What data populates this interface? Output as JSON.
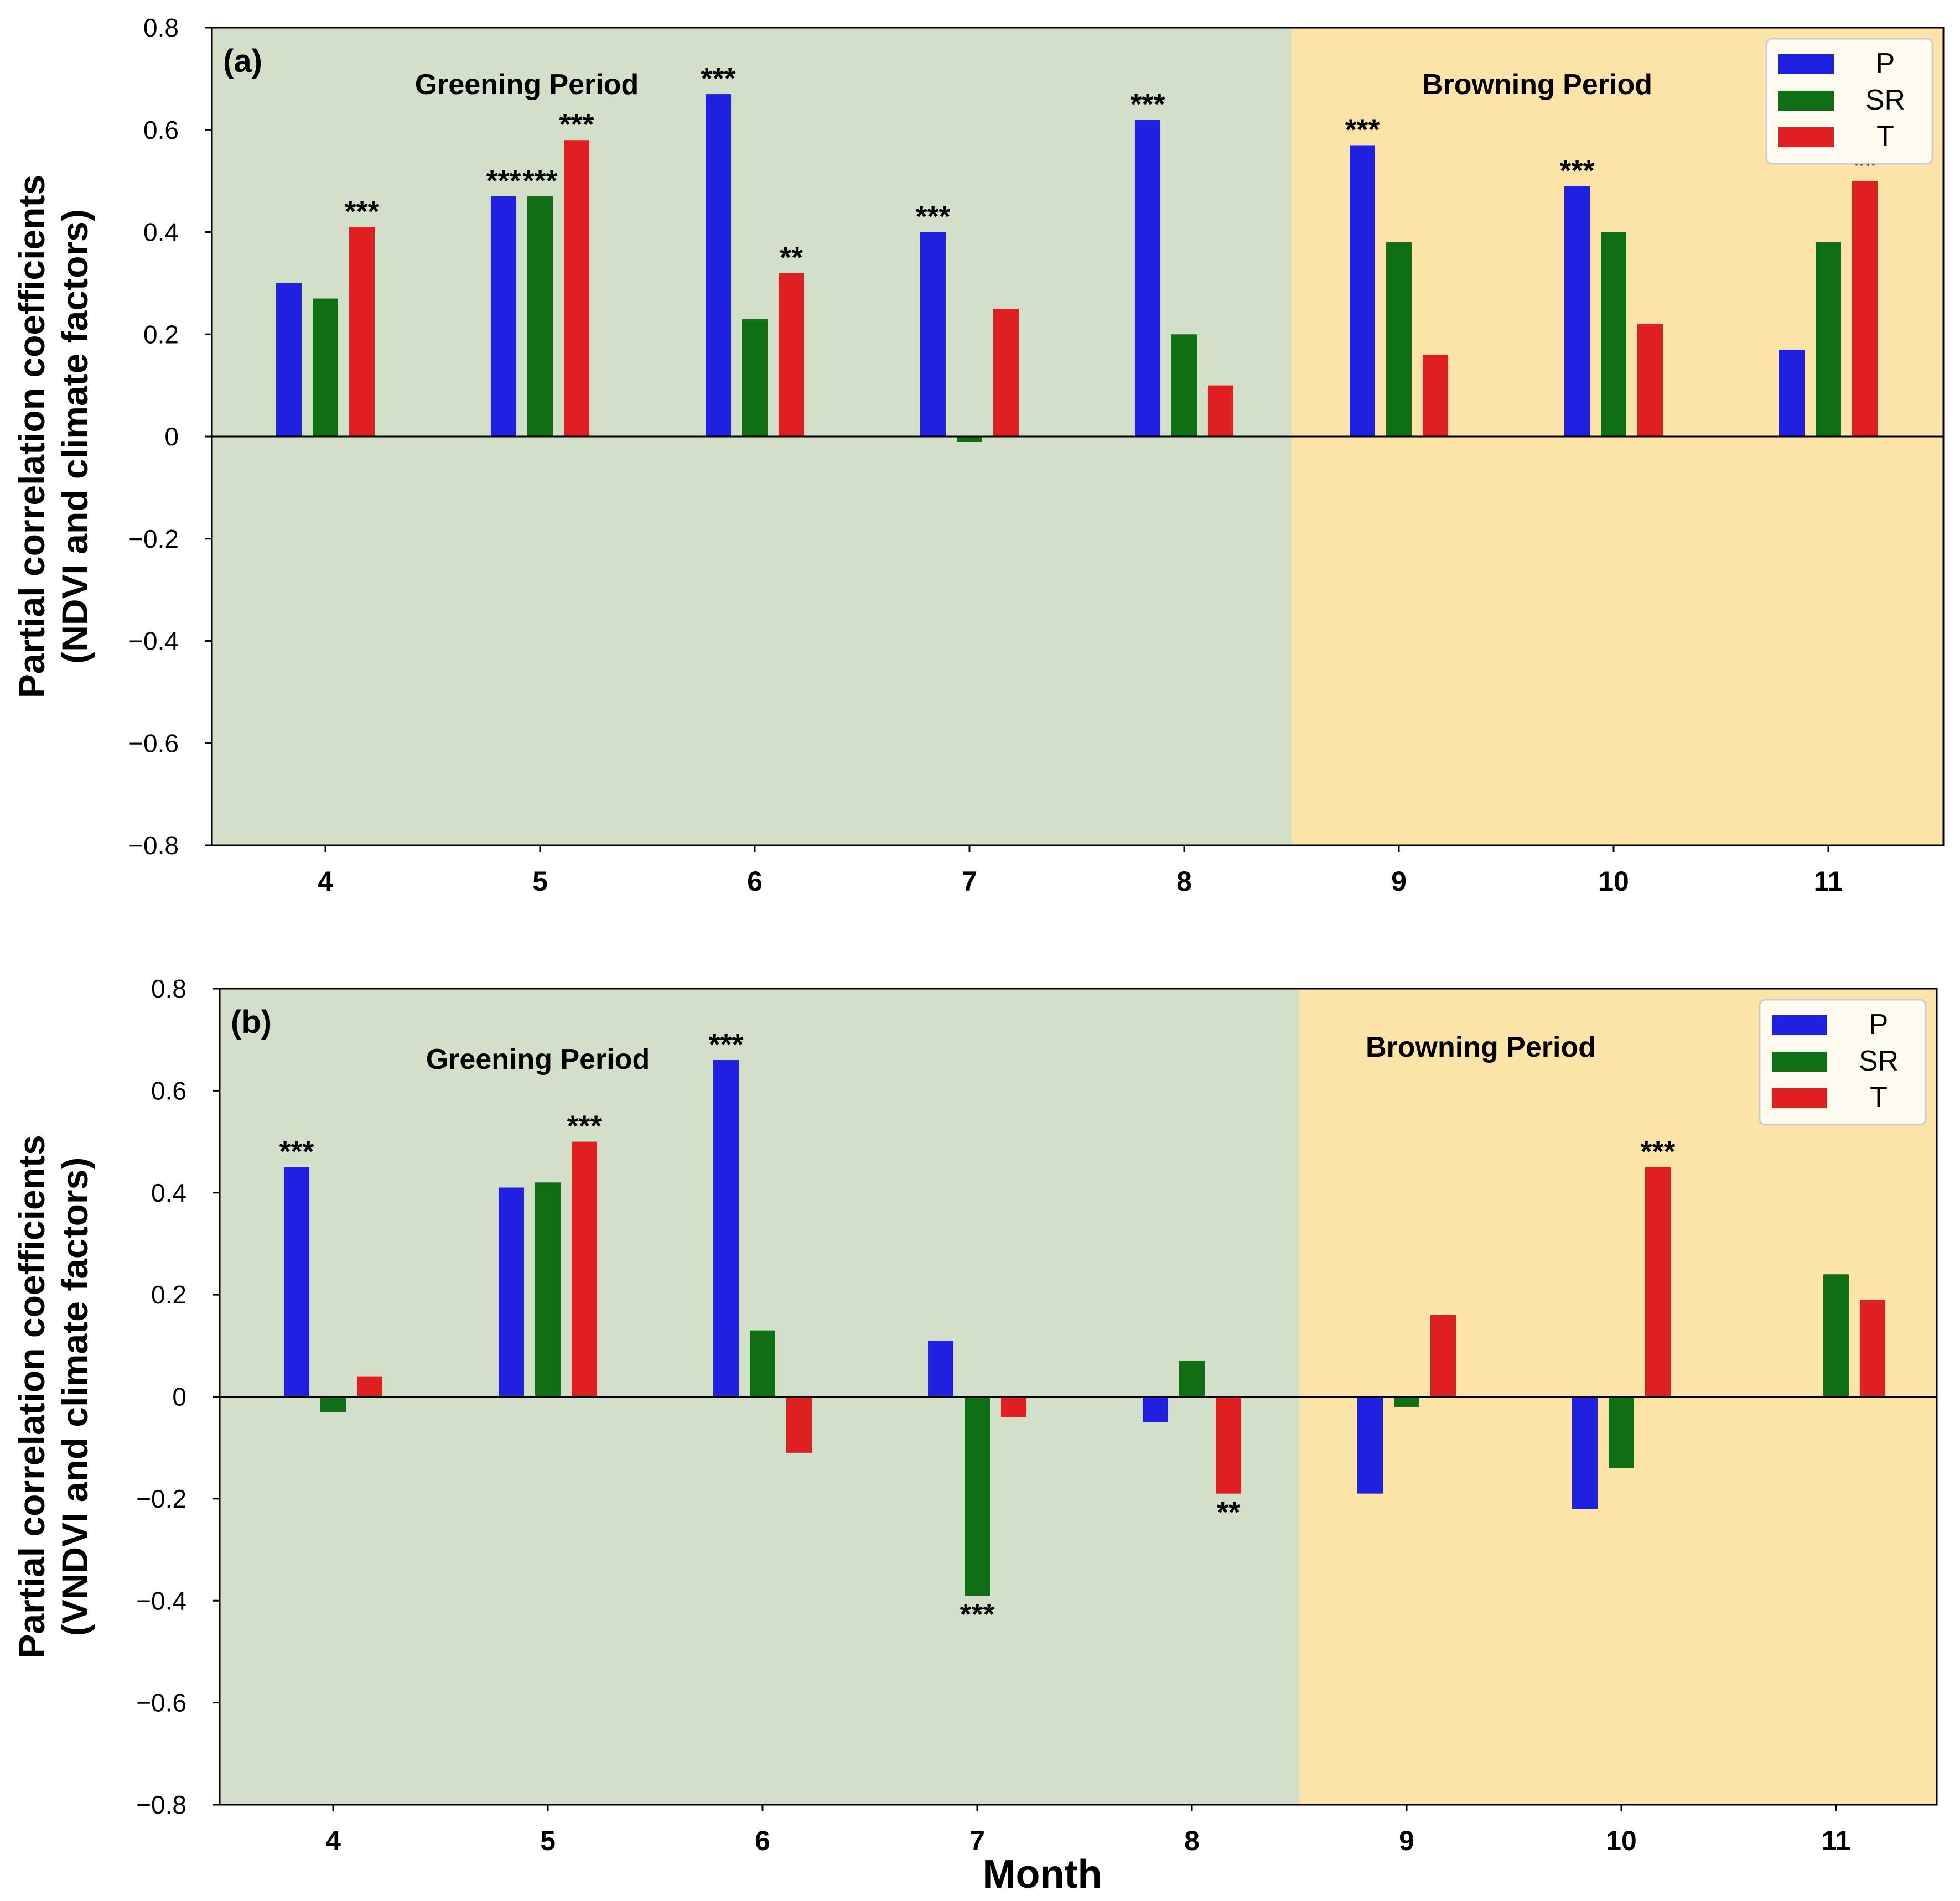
{
  "chart_data": [
    {
      "type": "bar",
      "panel_label": "(a)",
      "ylabel_line1": "Partial correlation coefficients",
      "ylabel_line2": "(NDVI and climate factors)",
      "xlabel": "",
      "categories": [
        "4",
        "5",
        "6",
        "7",
        "8",
        "9",
        "10",
        "11"
      ],
      "ylim": [
        -0.8,
        0.8
      ],
      "yticks": [
        0.8,
        0.6,
        0.4,
        0.2,
        0,
        -0.2,
        -0.4,
        -0.6,
        -0.8
      ],
      "ytick_labels": [
        "0.8",
        "0.6",
        "0.4",
        "0.2",
        "0",
        "−0.2",
        "−0.4",
        "−0.6",
        "−0.8"
      ],
      "regions": [
        {
          "label": "Greening Period",
          "from_category": "4",
          "to_category": "8",
          "color": "#d3e0c9"
        },
        {
          "label": "Browning Period",
          "from_category": "9",
          "to_category": "11",
          "color": "#fce3a7"
        }
      ],
      "series": [
        {
          "name": "P",
          "color": "#1f20e0",
          "values": [
            0.3,
            0.47,
            0.67,
            0.4,
            0.62,
            0.57,
            0.49,
            0.17
          ],
          "significance": [
            "",
            "***",
            "***",
            "***",
            "***",
            "***",
            "***",
            ""
          ]
        },
        {
          "name": "SR",
          "color": "#0f6f14",
          "values": [
            0.27,
            0.47,
            0.23,
            -0.01,
            0.2,
            0.38,
            0.4,
            0.38
          ],
          "significance": [
            "",
            "***",
            "",
            "",
            "",
            "",
            "",
            ""
          ]
        },
        {
          "name": "T",
          "color": "#e02020",
          "values": [
            0.41,
            0.58,
            0.32,
            0.25,
            0.1,
            0.16,
            0.22,
            0.5
          ],
          "significance": [
            "***",
            "***",
            "**",
            "",
            "",
            "",
            "",
            "**"
          ]
        }
      ],
      "legend": {
        "position": "top-right",
        "entries": [
          "P",
          "SR",
          "T"
        ]
      }
    },
    {
      "type": "bar",
      "panel_label": "(b)",
      "ylabel_line1": "Partial correlation coefficients",
      "ylabel_line2": "(VNDVI and climate factors)",
      "xlabel": "Month",
      "categories": [
        "4",
        "5",
        "6",
        "7",
        "8",
        "9",
        "10",
        "11"
      ],
      "ylim": [
        -0.8,
        0.8
      ],
      "yticks": [
        0.8,
        0.6,
        0.4,
        0.2,
        0,
        -0.2,
        -0.4,
        -0.6,
        -0.8
      ],
      "ytick_labels": [
        "0.8",
        "0.6",
        "0.4",
        "0.2",
        "0",
        "−0.2",
        "−0.4",
        "−0.6",
        "−0.8"
      ],
      "regions": [
        {
          "label": "Greening Period",
          "from_category": "4",
          "to_category": "8",
          "color": "#d3e0c9"
        },
        {
          "label": "Browning Period",
          "from_category": "9",
          "to_category": "11",
          "color": "#fce3a7"
        }
      ],
      "series": [
        {
          "name": "P",
          "color": "#1f20e0",
          "values": [
            0.45,
            0.41,
            0.66,
            0.11,
            -0.05,
            -0.19,
            -0.22,
            0.0
          ],
          "significance": [
            "***",
            "",
            "***",
            "",
            "",
            "",
            "",
            ""
          ]
        },
        {
          "name": "SR",
          "color": "#0f6f14",
          "values": [
            -0.03,
            0.42,
            0.13,
            -0.39,
            0.07,
            -0.02,
            -0.14,
            0.24
          ],
          "significance": [
            "",
            "",
            "",
            "***",
            "",
            "",
            "",
            ""
          ]
        },
        {
          "name": "T",
          "color": "#e02020",
          "values": [
            0.04,
            0.5,
            -0.11,
            -0.04,
            -0.19,
            0.16,
            0.45,
            0.19
          ],
          "significance": [
            "",
            "***",
            "",
            "",
            "**",
            "",
            "***",
            ""
          ]
        }
      ],
      "legend": {
        "position": "top-right",
        "entries": [
          "P",
          "SR",
          "T"
        ]
      }
    }
  ]
}
